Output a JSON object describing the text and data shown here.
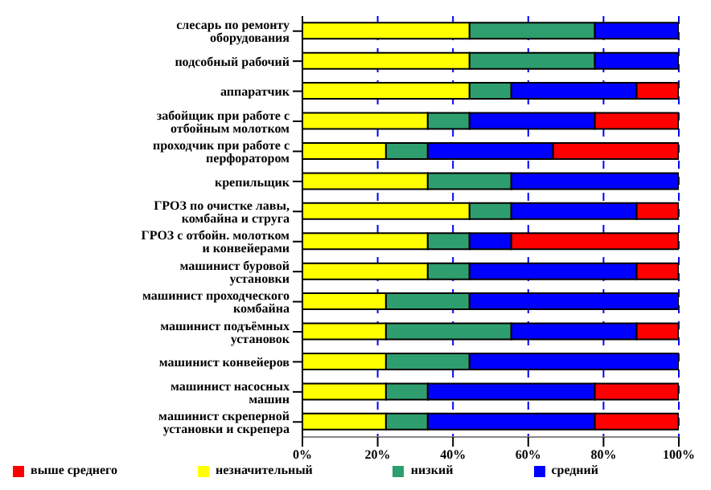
{
  "chart_data": {
    "type": "bar",
    "orientation": "horizontal",
    "stacked": true,
    "categories": [
      "слесарь по ремонту оборудования",
      "подсобный рабочий",
      "аппаратчик",
      "забойщик при работе с отбойным молотком",
      "проходчик при работе с перфоратором",
      "крепильщик",
      "ГРОЗ по очистке лавы, комбайна и струга",
      "ГРОЗ с отбойн. молотком и конвейерами",
      "машинист буровой установки",
      "машинист проходческого комбайна",
      "машинист подъёмных установок",
      "машинист конвейеров",
      "машинист насосных машин",
      "машинист скреперной установки и скрепера"
    ],
    "series": [
      {
        "name": "незначительный",
        "color": "#ffff00",
        "values": [
          44.4,
          44.4,
          44.4,
          33.3,
          22.2,
          33.3,
          44.4,
          33.3,
          33.3,
          22.2,
          22.2,
          22.2,
          22.2,
          22.2
        ]
      },
      {
        "name": "низкий",
        "color": "#2e9e6e",
        "values": [
          33.3,
          33.3,
          11.1,
          11.1,
          11.1,
          22.2,
          11.1,
          11.1,
          11.1,
          22.2,
          33.3,
          22.2,
          11.1,
          11.1
        ]
      },
      {
        "name": "средний",
        "color": "#0000ff",
        "values": [
          22.2,
          22.2,
          33.3,
          33.3,
          33.3,
          44.4,
          33.3,
          11.1,
          44.4,
          55.6,
          33.3,
          55.6,
          44.4,
          44.4
        ]
      },
      {
        "name": "выше среднего",
        "color": "#ff0000",
        "values": [
          0,
          0,
          11.1,
          22.2,
          33.3,
          0,
          11.1,
          44.4,
          11.1,
          0,
          11.1,
          0,
          22.2,
          22.2
        ]
      }
    ],
    "xlim": [
      0,
      100
    ],
    "xticks": [
      {
        "value": 0,
        "label": "0%"
      },
      {
        "value": 20,
        "label": "20%"
      },
      {
        "value": 40,
        "label": "40%"
      },
      {
        "value": 60,
        "label": "60%"
      },
      {
        "value": 80,
        "label": "80%"
      },
      {
        "value": 100,
        "label": "100%"
      }
    ],
    "grid": "x",
    "legend": "bottom"
  }
}
